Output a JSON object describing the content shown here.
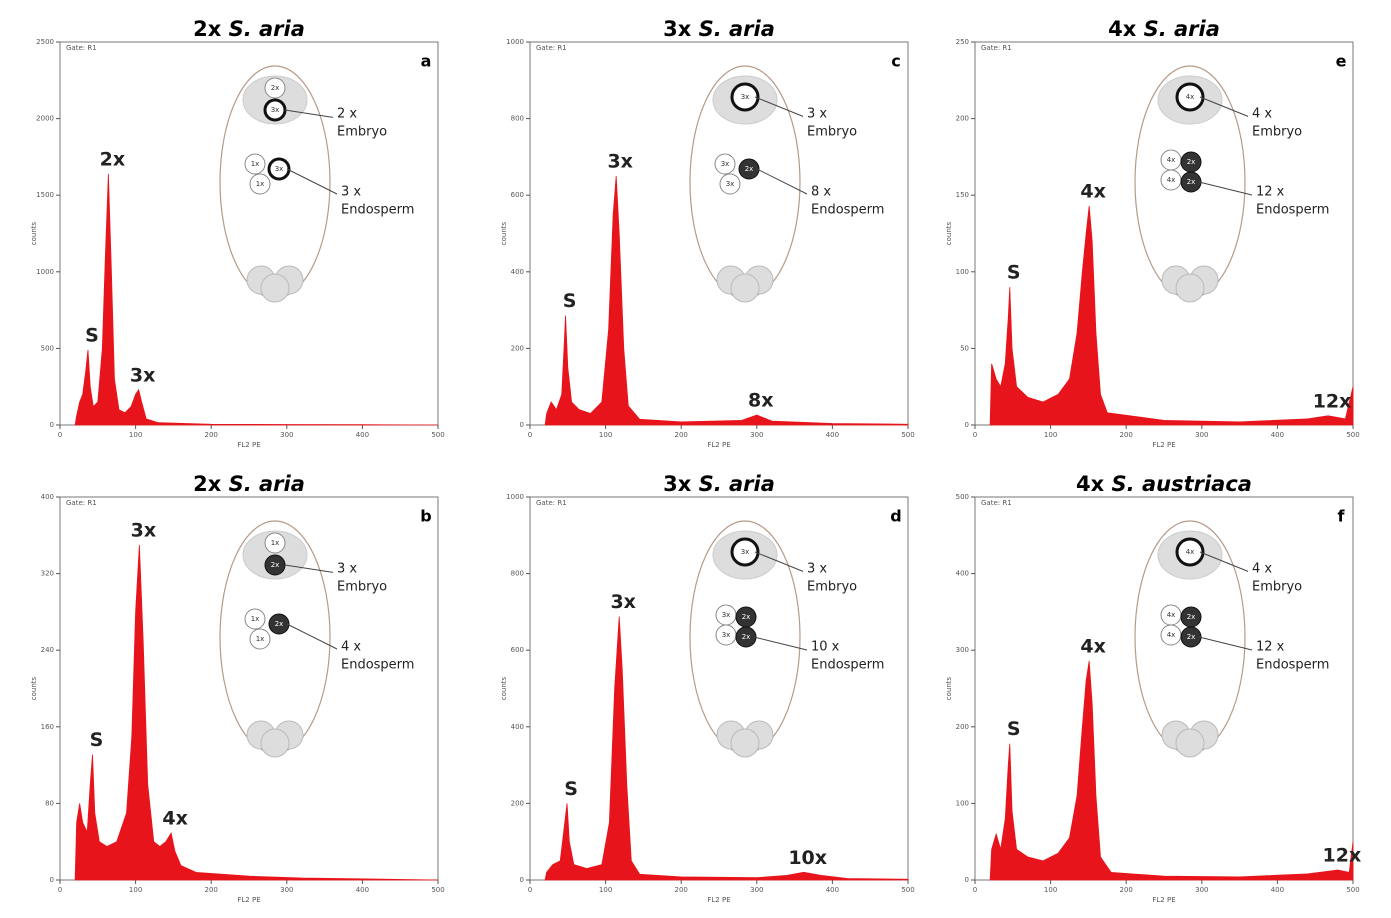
{
  "chart_data": [
    {
      "type": "area",
      "title_ploidy": "2x",
      "title_species": "S. aria",
      "panel": "a",
      "gate": "Gate: R1",
      "xlabel": "FL2 PE",
      "ylabel": "counts",
      "color": "#e8141b",
      "xlim": [
        0,
        500
      ],
      "xticks": [
        0,
        100,
        200,
        300,
        400,
        500
      ],
      "ylim": [
        0,
        2500
      ],
      "yticks": [
        0,
        500,
        1000,
        1500,
        2000,
        2500
      ],
      "x": [
        20,
        22,
        26,
        30,
        34,
        37,
        40,
        44,
        50,
        56,
        60,
        64,
        68,
        72,
        78,
        86,
        94,
        100,
        104,
        108,
        114,
        130,
        200,
        300,
        400,
        500
      ],
      "values": [
        0,
        60,
        150,
        200,
        350,
        490,
        250,
        120,
        150,
        500,
        1100,
        1640,
        1000,
        300,
        100,
        80,
        120,
        200,
        230,
        150,
        40,
        15,
        5,
        3,
        2,
        0
      ],
      "peak_labels": [
        null,
        null,
        null,
        null,
        null,
        "S",
        null,
        null,
        null,
        null,
        null,
        "2x",
        null,
        null,
        null,
        null,
        null,
        null,
        "3x",
        null,
        null,
        null,
        null,
        null,
        null,
        null
      ],
      "embryo_cells": [
        {
          "label": "2x",
          "style": "light"
        },
        {
          "label": "3x",
          "style": "ring"
        }
      ],
      "endosperm_cells": [
        {
          "label": "1x",
          "style": "light"
        },
        {
          "label": "1x",
          "style": "light"
        },
        {
          "label": "3x",
          "style": "ring"
        }
      ],
      "embryo_label": [
        "2 x",
        "Embryo"
      ],
      "endosperm_label": [
        "3 x",
        "Endosperm"
      ]
    },
    {
      "type": "area",
      "title_ploidy": "3x",
      "title_species": "S. aria",
      "panel": "c",
      "gate": "Gate: R1",
      "xlabel": "FL2 PE",
      "ylabel": "counts",
      "color": "#e8141b",
      "xlim": [
        0,
        500
      ],
      "xticks": [
        0,
        100,
        200,
        300,
        400,
        500
      ],
      "ylim": [
        0,
        1000
      ],
      "yticks": [
        0,
        200,
        400,
        600,
        800,
        1000
      ],
      "x": [
        20,
        22,
        28,
        35,
        42,
        45,
        47,
        50,
        55,
        65,
        80,
        95,
        104,
        110,
        114,
        118,
        124,
        130,
        145,
        200,
        280,
        300,
        320,
        400,
        500
      ],
      "values": [
        0,
        30,
        60,
        40,
        80,
        200,
        286,
        150,
        60,
        40,
        30,
        60,
        250,
        550,
        650,
        500,
        200,
        50,
        15,
        8,
        12,
        26,
        10,
        4,
        2
      ],
      "peak_labels": [
        null,
        null,
        null,
        null,
        null,
        null,
        "S",
        null,
        null,
        null,
        null,
        null,
        null,
        null,
        "3x",
        null,
        null,
        null,
        null,
        null,
        null,
        "8x",
        null,
        null,
        null
      ],
      "embryo_cells": [
        {
          "label": "3x",
          "style": "ring"
        }
      ],
      "endosperm_cells": [
        {
          "label": "3x",
          "style": "light"
        },
        {
          "label": "3x",
          "style": "light"
        },
        {
          "label": "2x",
          "style": "dark"
        }
      ],
      "embryo_label": [
        "3 x",
        "Embryo"
      ],
      "endosperm_label": [
        "8 x",
        "Endosperm"
      ]
    },
    {
      "type": "area",
      "title_ploidy": "4x",
      "title_species": "S. aria",
      "panel": "e",
      "gate": "Gate: R1",
      "xlabel": "FL2 PE",
      "ylabel": "counts",
      "color": "#e8141b",
      "xlim": [
        0,
        500
      ],
      "xticks": [
        0,
        100,
        200,
        300,
        400,
        500
      ],
      "ylim": [
        0,
        250
      ],
      "yticks": [
        0,
        50,
        100,
        150,
        200,
        250
      ],
      "x": [
        20,
        22,
        28,
        34,
        40,
        44,
        46,
        49,
        55,
        70,
        90,
        110,
        125,
        135,
        142,
        147,
        151,
        155,
        160,
        166,
        175,
        250,
        350,
        440,
        467,
        490,
        500
      ],
      "values": [
        0,
        40,
        30,
        25,
        40,
        70,
        90,
        50,
        25,
        18,
        15,
        20,
        30,
        60,
        100,
        125,
        143,
        120,
        60,
        20,
        8,
        3,
        2,
        4,
        6,
        4,
        25
      ],
      "peak_labels": [
        null,
        null,
        null,
        null,
        null,
        null,
        "S",
        null,
        null,
        null,
        null,
        null,
        null,
        null,
        null,
        null,
        "4x",
        null,
        null,
        null,
        null,
        null,
        null,
        null,
        "12x",
        null,
        null
      ],
      "embryo_cells": [
        {
          "label": "4x",
          "style": "ring"
        }
      ],
      "endosperm_cells": [
        {
          "label": "4x",
          "style": "light"
        },
        {
          "label": "4x",
          "style": "light"
        },
        {
          "label": "2x",
          "style": "dark"
        },
        {
          "label": "2x",
          "style": "dark"
        }
      ],
      "embryo_label": [
        "4 x",
        "Embryo"
      ],
      "endosperm_label": [
        "12 x",
        "Endosperm"
      ]
    },
    {
      "type": "area",
      "title_ploidy": "2x",
      "title_species": "S. aria",
      "panel": "b",
      "gate": "Gate: R1",
      "xlabel": "FL2 PE",
      "ylabel": "counts",
      "color": "#e8141b",
      "xlim": [
        0,
        500
      ],
      "xticks": [
        0,
        100,
        200,
        300,
        400,
        500
      ],
      "ylim": [
        0,
        400
      ],
      "yticks": [
        0,
        80,
        160,
        240,
        320,
        400
      ],
      "x": [
        20,
        22,
        26,
        30,
        36,
        40,
        43,
        46,
        52,
        62,
        75,
        88,
        95,
        100,
        105,
        110,
        116,
        124,
        132,
        140,
        147,
        152,
        160,
        180,
        250,
        320,
        500
      ],
      "values": [
        0,
        60,
        80,
        60,
        50,
        100,
        131,
        70,
        40,
        35,
        40,
        70,
        150,
        280,
        350,
        250,
        100,
        40,
        35,
        40,
        49,
        30,
        15,
        8,
        4,
        2,
        0
      ],
      "peak_labels": [
        null,
        null,
        null,
        null,
        null,
        null,
        "S",
        null,
        null,
        null,
        null,
        null,
        null,
        null,
        "3x",
        null,
        null,
        null,
        null,
        null,
        "4x",
        null,
        null,
        null,
        null,
        null,
        null
      ],
      "embryo_cells": [
        {
          "label": "1x",
          "style": "light"
        },
        {
          "label": "2x",
          "style": "dark"
        }
      ],
      "endosperm_cells": [
        {
          "label": "1x",
          "style": "light"
        },
        {
          "label": "1x",
          "style": "light"
        },
        {
          "label": "2x",
          "style": "dark"
        }
      ],
      "embryo_label": [
        "3 x",
        "Embryo"
      ],
      "endosperm_label": [
        "4 x",
        "Endosperm"
      ]
    },
    {
      "type": "area",
      "title_ploidy": "3x",
      "title_species": "S. aria",
      "panel": "d",
      "gate": "Gate: R1",
      "xlabel": "FL2 PE",
      "ylabel": "counts",
      "color": "#e8141b",
      "xlim": [
        0,
        500
      ],
      "xticks": [
        0,
        100,
        200,
        300,
        400,
        500
      ],
      "ylim": [
        0,
        1000
      ],
      "yticks": [
        0,
        200,
        400,
        600,
        800,
        1000
      ],
      "x": [
        20,
        22,
        30,
        40,
        46,
        49,
        52,
        58,
        75,
        95,
        105,
        112,
        118,
        122,
        128,
        134,
        145,
        200,
        300,
        340,
        362,
        385,
        420,
        500
      ],
      "values": [
        0,
        20,
        40,
        50,
        150,
        200,
        100,
        40,
        30,
        40,
        150,
        500,
        688,
        550,
        250,
        50,
        15,
        8,
        6,
        12,
        20,
        12,
        4,
        2
      ],
      "peak_labels": [
        null,
        null,
        null,
        null,
        null,
        "S",
        null,
        null,
        null,
        null,
        null,
        null,
        "3x",
        null,
        null,
        null,
        null,
        null,
        null,
        null,
        "10x",
        null,
        null,
        null
      ],
      "embryo_cells": [
        {
          "label": "3x",
          "style": "ring"
        }
      ],
      "endosperm_cells": [
        {
          "label": "3x",
          "style": "light"
        },
        {
          "label": "3x",
          "style": "light"
        },
        {
          "label": "2x",
          "style": "dark"
        },
        {
          "label": "2x",
          "style": "dark"
        }
      ],
      "embryo_label": [
        "3 x",
        "Embryo"
      ],
      "endosperm_label": [
        "10 x",
        "Endosperm"
      ]
    },
    {
      "type": "area",
      "title_ploidy": "4x",
      "title_species": "S. austriaca",
      "panel": "f",
      "gate": "Gate: R1",
      "xlabel": "FL2 PE",
      "ylabel": "counts",
      "color": "#e8141b",
      "xlim": [
        0,
        500
      ],
      "xticks": [
        0,
        100,
        200,
        300,
        400,
        500
      ],
      "ylim": [
        0,
        500
      ],
      "yticks": [
        0,
        100,
        200,
        300,
        400,
        500
      ],
      "x": [
        20,
        22,
        28,
        34,
        40,
        44,
        46,
        49,
        55,
        70,
        90,
        110,
        125,
        135,
        142,
        147,
        151,
        155,
        160,
        166,
        180,
        250,
        350,
        440,
        480,
        495,
        500
      ],
      "values": [
        0,
        40,
        60,
        40,
        80,
        150,
        178,
        90,
        40,
        30,
        25,
        35,
        55,
        110,
        200,
        260,
        286,
        230,
        110,
        30,
        10,
        5,
        4,
        8,
        13,
        10,
        50
      ],
      "peak_labels": [
        null,
        null,
        null,
        null,
        null,
        null,
        "S",
        null,
        null,
        null,
        null,
        null,
        null,
        null,
        null,
        null,
        "4x",
        null,
        null,
        null,
        null,
        null,
        null,
        null,
        "12x",
        null,
        null
      ],
      "embryo_cells": [
        {
          "label": "4x",
          "style": "ring"
        }
      ],
      "endosperm_cells": [
        {
          "label": "4x",
          "style": "light"
        },
        {
          "label": "4x",
          "style": "light"
        },
        {
          "label": "2x",
          "style": "dark"
        },
        {
          "label": "2x",
          "style": "dark"
        }
      ],
      "embryo_label": [
        "4 x",
        "Embryo"
      ],
      "endosperm_label": [
        "12 x",
        "Endosperm"
      ]
    }
  ]
}
